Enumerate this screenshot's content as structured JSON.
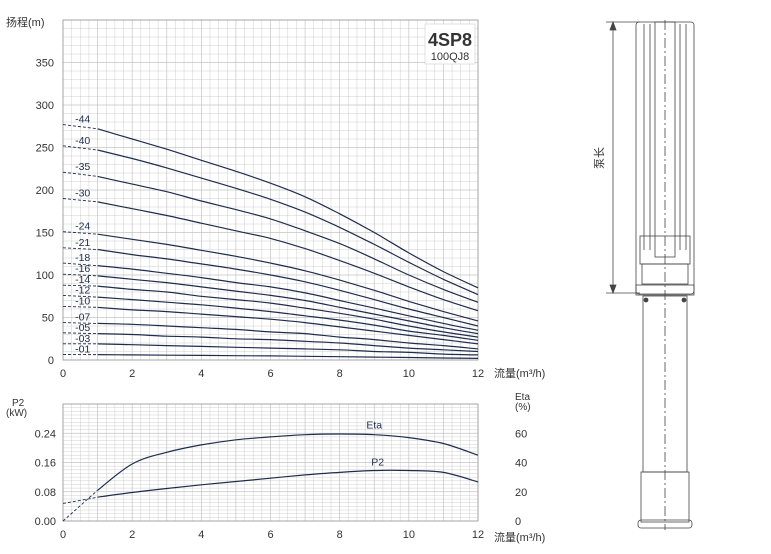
{
  "chart_data": [
    {
      "type": "line",
      "title": "4SP8",
      "subtitle": "100QJ8",
      "ylabel": "扬程(m)",
      "xlabel": "流量(m³/h)",
      "xlim": [
        0,
        12
      ],
      "ylim": [
        0,
        400
      ],
      "xticks": [
        "0",
        "2",
        "4",
        "6",
        "8",
        "10",
        "12"
      ],
      "yticks": [
        "0",
        "50",
        "100",
        "150",
        "200",
        "250",
        "300",
        "350"
      ],
      "grid": true,
      "x": [
        0,
        1,
        2,
        3,
        4,
        5,
        6,
        7,
        8,
        9,
        10,
        11,
        12
      ],
      "series": [
        {
          "name": "-44",
          "values": [
            277,
            272,
            260,
            248,
            235,
            222,
            208,
            192,
            172,
            150,
            126,
            104,
            85
          ]
        },
        {
          "name": "-40",
          "values": [
            252,
            247,
            237,
            226,
            214,
            202,
            189,
            174,
            156,
            136,
            115,
            95,
            77
          ]
        },
        {
          "name": "-35",
          "values": [
            221,
            216,
            207,
            198,
            187,
            177,
            166,
            152,
            137,
            119,
            100,
            83,
            68
          ]
        },
        {
          "name": "-30",
          "values": [
            190,
            186,
            178,
            170,
            161,
            152,
            143,
            131,
            117,
            102,
            86,
            71,
            58
          ]
        },
        {
          "name": "-24",
          "values": [
            151,
            148,
            142,
            136,
            129,
            122,
            114,
            105,
            94,
            82,
            69,
            57,
            46
          ]
        },
        {
          "name": "-21",
          "values": [
            132,
            130,
            124,
            119,
            113,
            107,
            100,
            92,
            82,
            71,
            60,
            50,
            40
          ]
        },
        {
          "name": "-18",
          "values": [
            114,
            111,
            107,
            102,
            97,
            91,
            86,
            79,
            70,
            61,
            52,
            43,
            35
          ]
        },
        {
          "name": "-16",
          "values": [
            101,
            99,
            95,
            91,
            86,
            81,
            76,
            70,
            62,
            54,
            46,
            38,
            31
          ]
        },
        {
          "name": "-14",
          "values": [
            88,
            87,
            83,
            80,
            75,
            71,
            67,
            61,
            55,
            48,
            40,
            33,
            27
          ]
        },
        {
          "name": "-12",
          "values": [
            76,
            74,
            71,
            68,
            65,
            61,
            57,
            52,
            47,
            41,
            34,
            29,
            23
          ]
        },
        {
          "name": "-10",
          "values": [
            63,
            62,
            59,
            57,
            54,
            51,
            48,
            44,
            39,
            34,
            29,
            24,
            19
          ]
        },
        {
          "name": "-07",
          "values": [
            44,
            43,
            42,
            40,
            38,
            36,
            33,
            31,
            27,
            24,
            20,
            17,
            13
          ]
        },
        {
          "name": "-05",
          "values": [
            32,
            31,
            30,
            28,
            27,
            25,
            24,
            22,
            20,
            17,
            14,
            12,
            10
          ]
        },
        {
          "name": "-03",
          "values": [
            19,
            19,
            18,
            17,
            16,
            15,
            14,
            13,
            12,
            10,
            9,
            7,
            6
          ]
        },
        {
          "name": "-01",
          "values": [
            6.5,
            6.3,
            6,
            5.7,
            5.4,
            5.1,
            4.8,
            4.4,
            3.9,
            3.4,
            2.9,
            2.4,
            1.9
          ]
        }
      ]
    },
    {
      "type": "line",
      "ylabel": "P2\n(kW)",
      "y2label": "Eta\n(%)",
      "xlabel": "流量(m³/h)",
      "xlim": [
        0,
        12
      ],
      "ylim": [
        0,
        0.32
      ],
      "y2lim": [
        0,
        80
      ],
      "xticks": [
        "0",
        "2",
        "4",
        "6",
        "8",
        "10",
        "12"
      ],
      "yticks": [
        "0.00",
        "0.08",
        "0.16",
        "0.24"
      ],
      "y2ticks": [
        "0",
        "20",
        "40",
        "60"
      ],
      "grid": true,
      "x": [
        0,
        1,
        2,
        3,
        4,
        5,
        6,
        7,
        8,
        9,
        10,
        11,
        12
      ],
      "series": [
        {
          "name": "Eta",
          "axis": "right",
          "values": [
            0,
            21,
            39,
            47,
            52,
            55.5,
            57.5,
            59,
            59.5,
            59,
            57,
            53,
            45
          ]
        },
        {
          "name": "P2",
          "axis": "left",
          "values": [
            0.048,
            0.065,
            0.078,
            0.089,
            0.099,
            0.108,
            0.117,
            0.126,
            0.133,
            0.138,
            0.138,
            0.133,
            0.107
          ]
        }
      ]
    }
  ],
  "pump_label": "泵长",
  "colors": {
    "curve": "#1f2d4d",
    "grid": "#c4c4c4",
    "text": "#333333"
  }
}
